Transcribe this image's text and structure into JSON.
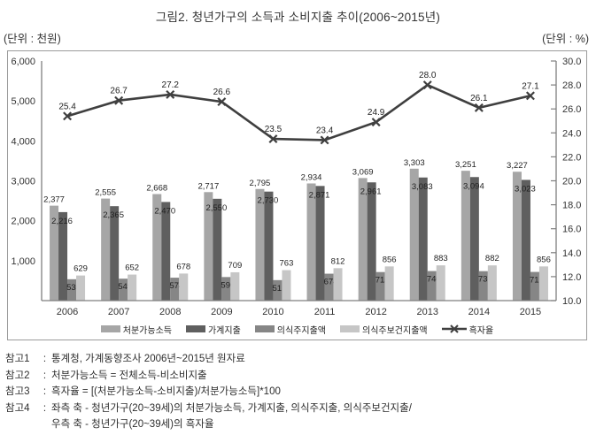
{
  "title": "그림2. 청년가구의 소득과 소비지출 추이(2006~2015년)",
  "unit_left": "(단위 : 천원)",
  "unit_right": "(단위 : %)",
  "colors": {
    "disposable_income": "#a6a6a6",
    "household_expenditure": "#5f5f5f",
    "basic_living_expenditure": "#868686",
    "basic_living_health_expenditure": "#c6c6c6",
    "surplus_rate_line": "#3f3f3f",
    "axis": "#7f7f7f",
    "label_text": "#1f1f1f",
    "frame_border": "#9b9b9b"
  },
  "chart_data": {
    "type": "bar+line",
    "categories": [
      "2006",
      "2007",
      "2008",
      "2009",
      "2010",
      "2011",
      "2012",
      "2013",
      "2014",
      "2015"
    ],
    "series": [
      {
        "name": "처분가능소득",
        "type": "bar",
        "color": "#a6a6a6",
        "values": [
          2377,
          2555,
          2668,
          2717,
          2795,
          2934,
          3069,
          3303,
          3251,
          3227
        ]
      },
      {
        "name": "가계지출",
        "type": "bar",
        "color": "#5f5f5f",
        "values": [
          2216,
          2365,
          2470,
          2550,
          2730,
          2871,
          2961,
          3083,
          3094,
          3023
        ]
      },
      {
        "name": "의식주지출액",
        "type": "bar",
        "color": "#868686",
        "values": [
          535,
          549,
          574,
          590,
          513,
          674,
          715,
          740,
          737,
          718
        ]
      },
      {
        "name": "의식주보건지출액",
        "type": "bar",
        "color": "#c6c6c6",
        "values": [
          629,
          652,
          678,
          709,
          763,
          812,
          856,
          883,
          882,
          856
        ]
      },
      {
        "name": "흑자율",
        "type": "line",
        "axis": "right",
        "color": "#3f3f3f",
        "values": [
          25.4,
          26.7,
          27.2,
          26.6,
          23.5,
          23.4,
          24.9,
          28.0,
          26.1,
          27.1
        ]
      }
    ],
    "left_axis": {
      "min": 0,
      "max": 6000,
      "tick_step": 1000,
      "tick_labels": [
        "6,000",
        "5,000",
        "4,000",
        "3,000",
        "2,000",
        "1,000"
      ]
    },
    "right_axis": {
      "min": 10,
      "max": 30,
      "tick_step": 2,
      "tick_labels": [
        "30.0",
        "28.0",
        "26.0",
        "24.0",
        "22.0",
        "20.0",
        "18.0",
        "16.0",
        "14.0",
        "12.0",
        "10.0"
      ]
    },
    "legend_position": "bottom",
    "grid": false
  },
  "notes_separator": ":",
  "notes": [
    {
      "label": "참고1",
      "text": "통계청, 가계동향조사 2006년~2015년 원자료"
    },
    {
      "label": "참고2",
      "text": "처분가능소득 = 전체소득-비소비지출"
    },
    {
      "label": "참고3",
      "text": "흑자율 = [(처분가능소득-소비지출)/처분가능소득]*100"
    },
    {
      "label": "참고4",
      "text": "좌측 축 - 청년가구(20~39세)의 처분가능소득, 가계지출, 의식주지출, 의식주보건지출/",
      "text2": "우측 축 - 청년가구(20~39세)의 흑자율"
    }
  ]
}
